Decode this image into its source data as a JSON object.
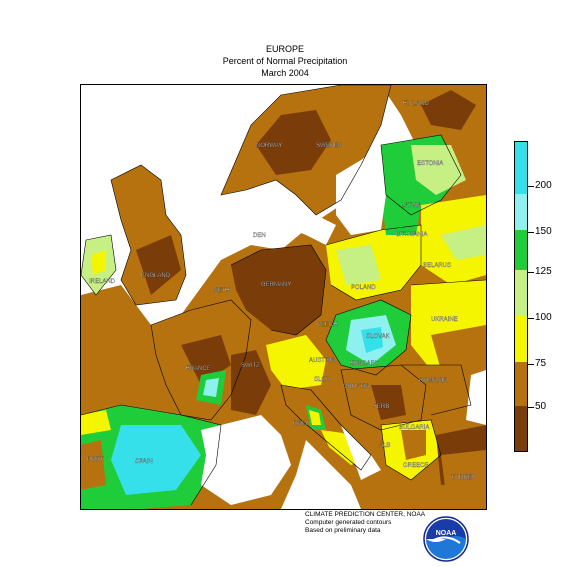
{
  "title": {
    "line1": "EUROPE",
    "line2": "Percent of Normal Precipitation",
    "line3": "March 2004"
  },
  "legend": {
    "ticks": [
      "50",
      "75",
      "100",
      "125",
      "150",
      "200"
    ],
    "colors": [
      "#7a3c08",
      "#b5720e",
      "#f5f500",
      "#c6ef84",
      "#1fcc3a",
      "#8ff0f0",
      "#36e0ea"
    ]
  },
  "credits": {
    "line1": "CLIMATE PREDICTION CENTER, NOAA",
    "line2": "Computer generated contours",
    "line3": "Based on preliminary data"
  },
  "countries": [
    {
      "name": "FINLAND"
    },
    {
      "name": "NORWAY"
    },
    {
      "name": "SWEDEN"
    },
    {
      "name": "ESTONIA"
    },
    {
      "name": "LATVIA"
    },
    {
      "name": "LITHUANIA"
    },
    {
      "name": "BELARUS"
    },
    {
      "name": "DEN"
    },
    {
      "name": "ENGLAND"
    },
    {
      "name": "IRELAND"
    },
    {
      "name": "NETH"
    },
    {
      "name": "GERMANY"
    },
    {
      "name": "POLAND"
    },
    {
      "name": "UKRAINE"
    },
    {
      "name": "CZECH"
    },
    {
      "name": "SLOVAK"
    },
    {
      "name": "FRANCE"
    },
    {
      "name": "SWITZ"
    },
    {
      "name": "AUSTRIA"
    },
    {
      "name": "HUNGARY"
    },
    {
      "name": "ROMANIA"
    },
    {
      "name": "SLOV"
    },
    {
      "name": "CROATIA"
    },
    {
      "name": "SERB"
    },
    {
      "name": "BULGARIA"
    },
    {
      "name": "ITALY"
    },
    {
      "name": "SPAIN"
    },
    {
      "name": "PORT"
    },
    {
      "name": "GREECE"
    },
    {
      "name": "TURKEY"
    },
    {
      "name": "ALB"
    }
  ],
  "logo_text": "NOAA"
}
